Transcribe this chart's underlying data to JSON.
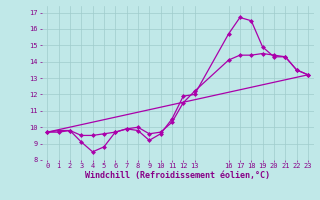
{
  "title": "",
  "xlabel": "Windchill (Refroidissement éolien,°C)",
  "bg_color": "#c0e8e8",
  "grid_color": "#a0cccc",
  "line_color": "#aa00aa",
  "xlim": [
    -0.5,
    23.5
  ],
  "ylim": [
    8.0,
    17.4
  ],
  "xticks": [
    0,
    1,
    2,
    3,
    4,
    5,
    6,
    7,
    8,
    9,
    10,
    11,
    12,
    13,
    16,
    17,
    18,
    19,
    20,
    21,
    22,
    23
  ],
  "yticks": [
    8,
    9,
    10,
    11,
    12,
    13,
    14,
    15,
    16,
    17
  ],
  "line1_x": [
    0,
    1,
    2,
    3,
    4,
    5,
    6,
    7,
    8,
    9,
    10,
    11,
    12,
    13,
    16,
    17,
    18,
    19,
    20,
    21,
    22,
    23
  ],
  "line1_y": [
    9.7,
    9.8,
    9.8,
    9.1,
    8.5,
    8.8,
    9.7,
    9.9,
    9.8,
    9.2,
    9.6,
    10.5,
    11.9,
    12.0,
    15.7,
    16.7,
    16.5,
    14.9,
    14.3,
    14.3,
    13.5,
    13.2
  ],
  "line2_x": [
    0,
    1,
    2,
    3,
    4,
    5,
    6,
    7,
    8,
    9,
    10,
    11,
    12,
    13,
    16,
    17,
    18,
    19,
    20,
    21,
    22,
    23
  ],
  "line2_y": [
    9.7,
    9.7,
    9.8,
    9.5,
    9.5,
    9.6,
    9.7,
    9.9,
    10.0,
    9.6,
    9.7,
    10.3,
    11.5,
    12.2,
    14.1,
    14.4,
    14.4,
    14.5,
    14.4,
    14.3,
    13.5,
    13.2
  ],
  "line3_x": [
    0,
    23
  ],
  "line3_y": [
    9.7,
    13.2
  ],
  "markersize": 2.5,
  "linewidth": 0.9,
  "tick_fontsize": 5.0,
  "xlabel_fontsize": 6.0,
  "tick_color": "#880088",
  "label_color": "#880088"
}
